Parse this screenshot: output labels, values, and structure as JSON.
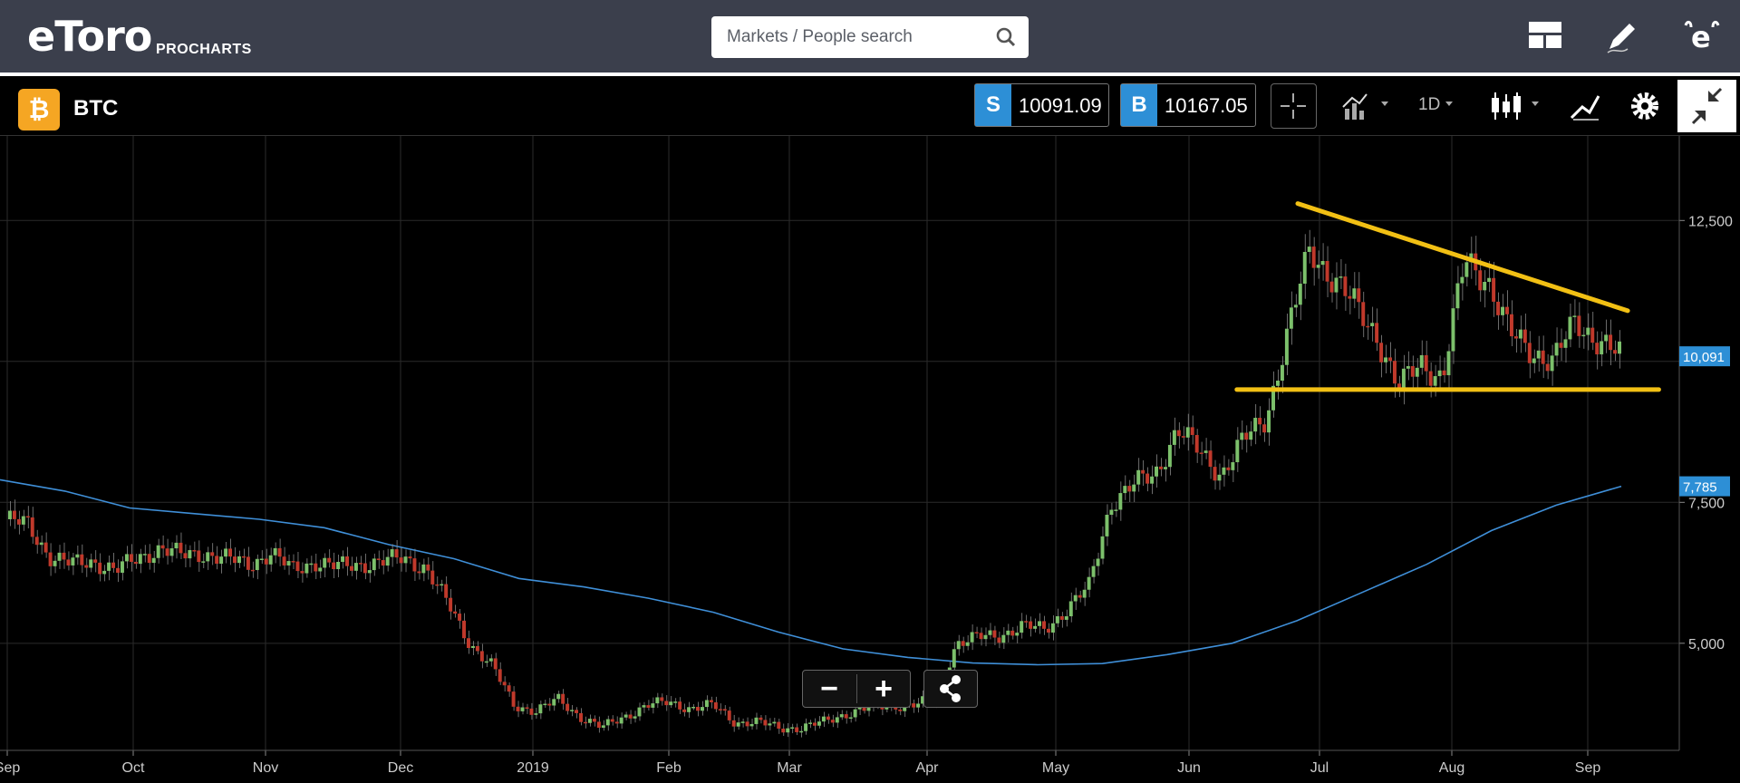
{
  "header": {
    "logo": "eToro",
    "logo_sub": "PROCHARTS",
    "search_placeholder": "Markets / People search"
  },
  "toolbar": {
    "instrument": "BTC",
    "sell_letter": "S",
    "sell_price": "10091.09",
    "buy_letter": "B",
    "buy_price": "10167.05",
    "timeframe": "1D",
    "icons": [
      "crosshair-icon",
      "indicators-icon",
      "candles-icon",
      "drawing-icon",
      "settings-icon",
      "collapse-icon"
    ]
  },
  "zoom": {
    "minus": "−",
    "plus": "+"
  },
  "colors": {
    "up": "#7cc06b",
    "down": "#c0392b",
    "ma": "#3f8fd8",
    "trend": "#f2c014",
    "accent": "#2d8fd6",
    "bg": "#000000"
  },
  "chart_data": {
    "type": "candlestick",
    "x_labels": [
      "Sep",
      "Oct",
      "Nov",
      "Dec",
      "2019",
      "Feb",
      "Mar",
      "Apr",
      "May",
      "Jun",
      "Jul",
      "Aug",
      "Sep"
    ],
    "y_ticks": [
      5000,
      7500,
      10000,
      12500
    ],
    "y_tick_labels": [
      "5,000",
      "7,500",
      "",
      "12,500"
    ],
    "ylim": [
      3100,
      14000
    ],
    "grid": true,
    "last_price_label": "10,091",
    "ma_value_label": "7,785",
    "close_series": [
      7200,
      7100,
      6550,
      6400,
      6450,
      6300,
      6500,
      6700,
      6550,
      6600,
      6500,
      6400,
      6600,
      6300,
      6450,
      6350,
      6400,
      6450,
      6500,
      6350,
      5700,
      5000,
      4600,
      3900,
      3800,
      4000,
      3700,
      3500,
      3700,
      3900,
      3950,
      3850,
      3900,
      3600,
      3600,
      3500,
      3500,
      3600,
      3750,
      3850,
      3900,
      3900,
      4000,
      5000,
      5100,
      5150,
      5300,
      5250,
      5600,
      6000,
      7500,
      7800,
      8000,
      8800,
      8400,
      8000,
      8600,
      9000,
      10500,
      12000,
      11500,
      11000,
      10500,
      9500,
      10000,
      9700,
      11800,
      11500,
      10500,
      10200,
      10000,
      10700,
      10400,
      10100
    ],
    "ma_series": [
      7900,
      7700,
      7400,
      7300,
      7200,
      7050,
      6750,
      6500,
      6150,
      6000,
      5800,
      5550,
      5200,
      4900,
      4750,
      4650,
      4620,
      4640,
      4800,
      5000,
      5400,
      5900,
      6400,
      7000,
      7450,
      7785
    ],
    "trendlines": [
      {
        "from": [
          "Jun 26",
          12800
        ],
        "to": [
          "Sep 10",
          10900
        ]
      },
      {
        "from": [
          "Jun 12",
          9500
        ],
        "to": [
          "Sep 17",
          9500
        ]
      }
    ]
  }
}
